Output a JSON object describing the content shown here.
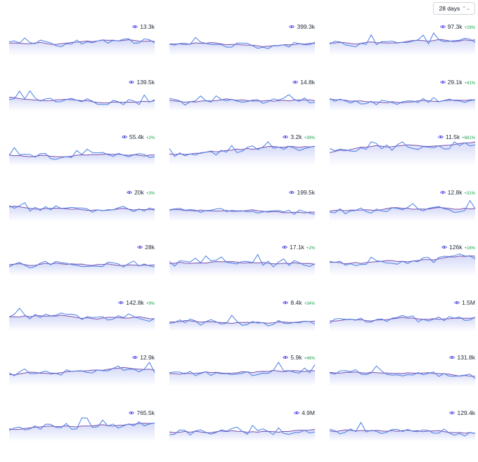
{
  "toolbar": {
    "range_label": "28 days",
    "range_icon": "chevron-down-icon"
  },
  "colors": {
    "views_line": "#4a7ee5",
    "baseline_line": "#7a4fb0",
    "area_top": "#c7cdf5",
    "delta_up": "#16a34a",
    "eye_icon": "#4f46e5"
  },
  "cards": [
    {
      "views": "13.3k",
      "delta": ""
    },
    {
      "views": "399.3k",
      "delta": ""
    },
    {
      "views": "97.3k",
      "delta": "+29%"
    },
    {
      "views": "139.5k",
      "delta": ""
    },
    {
      "views": "14.8k",
      "delta": ""
    },
    {
      "views": "29.1k",
      "delta": "+41%"
    },
    {
      "views": "55.4k",
      "delta": "+2%"
    },
    {
      "views": "3.2k",
      "delta": "+39%"
    },
    {
      "views": "11.5k",
      "delta": "+681%"
    },
    {
      "views": "20k",
      "delta": "+3%"
    },
    {
      "views": "199.5k",
      "delta": ""
    },
    {
      "views": "12.8k",
      "delta": "+31%"
    },
    {
      "views": "28k",
      "delta": ""
    },
    {
      "views": "17.1k",
      "delta": "+2%"
    },
    {
      "views": "126k",
      "delta": "+16%"
    },
    {
      "views": "142.8k",
      "delta": "+9%"
    },
    {
      "views": "8.4k",
      "delta": "+34%"
    },
    {
      "views": "1.5M",
      "delta": ""
    },
    {
      "views": "12.9k",
      "delta": ""
    },
    {
      "views": "5.9k",
      "delta": "+46%"
    },
    {
      "views": "131.8k",
      "delta": ""
    },
    {
      "views": "765.5k",
      "delta": ""
    },
    {
      "views": "4.9M",
      "delta": ""
    },
    {
      "views": "129.4k",
      "delta": ""
    }
  ]
}
